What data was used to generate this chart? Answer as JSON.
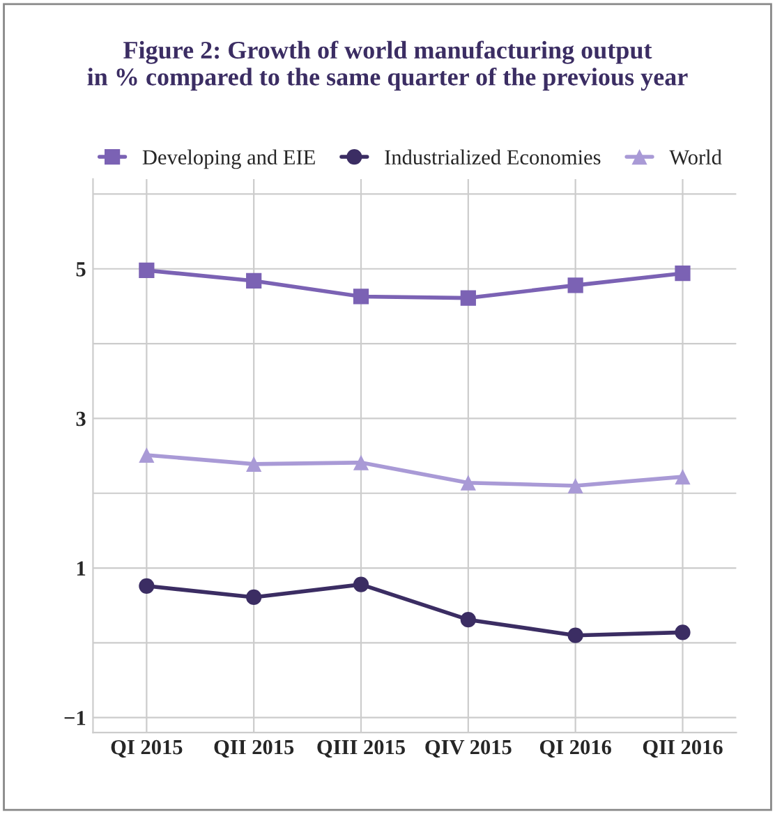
{
  "chart_data": {
    "type": "line",
    "title": "Figure 2: Growth of world manufacturing output\nin % compared to the same quarter of the previous year",
    "categories": [
      "QI 2015",
      "QII 2015",
      "QIII 2015",
      "QIV 2015",
      "QI 2016",
      "QII 2016"
    ],
    "series": [
      {
        "name": "Developing and EIE",
        "color": "#7b62b4",
        "marker": "square",
        "values": [
          4.98,
          4.84,
          4.63,
          4.61,
          4.78,
          4.94
        ]
      },
      {
        "name": "Industrialized Economies",
        "color": "#3b2d63",
        "marker": "circle",
        "values": [
          0.76,
          0.61,
          0.78,
          0.31,
          0.1,
          0.14
        ]
      },
      {
        "name": "World",
        "color": "#a99ad6",
        "marker": "triangle",
        "values": [
          2.51,
          2.39,
          2.41,
          2.14,
          2.1,
          2.22
        ]
      }
    ],
    "ylim": [
      -1.2,
      6.2
    ],
    "yticks": [
      {
        "value": -1,
        "label": "−1"
      },
      {
        "value": 0,
        "label": null
      },
      1,
      {
        "value": 2,
        "label": null
      },
      3,
      {
        "value": 4,
        "label": null
      },
      5,
      {
        "value": 6,
        "label": null
      }
    ],
    "grid": true,
    "legend": "top",
    "line_style": "solid"
  }
}
